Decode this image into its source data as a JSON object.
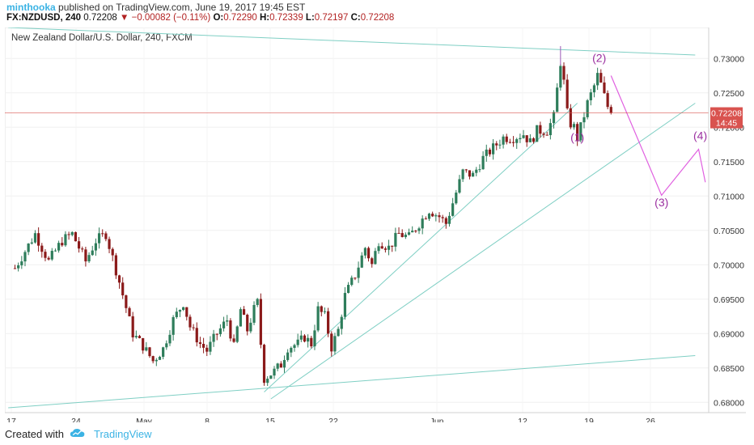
{
  "header": {
    "author": "minthooka",
    "published": "published on TradingView.com, June 19, 2017 19:45 EST",
    "symbol": "FX:NZDUSD, 240",
    "last": "0.72208",
    "change": "−0.00082 (−0.11%)",
    "o_label": "O:",
    "o_val": "0.72290",
    "h_label": "H:",
    "h_val": "0.72339",
    "l_label": "L:",
    "l_val": "0.72197",
    "c_label": "C:",
    "c_val": "0.72208"
  },
  "footer": {
    "created": "Created with",
    "brand": "TradingView"
  },
  "colors": {
    "up": "#2e7d5b",
    "down": "#8b1a1a",
    "trend": "#7fcfc4",
    "projection": "#e060e0",
    "wave_label": "#9b30a0",
    "last_price": "#d9534f",
    "axis_text": "#333333"
  },
  "chart_data": {
    "type": "candlestick",
    "title": "New Zealand Dollar/U.S. Dollar, 240, FXCM",
    "x_ticks": [
      "17",
      "24",
      "May",
      "8",
      "15",
      "22",
      "Jun",
      "12",
      "19",
      "26"
    ],
    "y_ticks": [
      "0.73000",
      "0.72500",
      "0.72000",
      "0.71500",
      "0.71000",
      "0.70500",
      "0.70000",
      "0.69500",
      "0.69000",
      "0.68500",
      "0.68000"
    ],
    "ylim": [
      0.6785,
      0.7345
    ],
    "last_price_label": "0.72208",
    "countdown_label": "14:45",
    "price_path": [
      [
        0,
        0.6995
      ],
      [
        6,
        0.7045
      ],
      [
        10,
        0.7005
      ],
      [
        14,
        0.7035
      ],
      [
        17,
        0.7045
      ],
      [
        21,
        0.7005
      ],
      [
        24,
        0.7035
      ],
      [
        27,
        0.7045
      ],
      [
        31,
        0.6975
      ],
      [
        35,
        0.69
      ],
      [
        38,
        0.6882
      ],
      [
        41,
        0.686
      ],
      [
        44,
        0.6878
      ],
      [
        47,
        0.692
      ],
      [
        50,
        0.6945
      ],
      [
        52,
        0.691
      ],
      [
        55,
        0.6885
      ],
      [
        57,
        0.6875
      ],
      [
        60,
        0.69
      ],
      [
        63,
        0.692
      ],
      [
        65,
        0.688
      ],
      [
        67,
        0.6935
      ],
      [
        69,
        0.6905
      ],
      [
        71,
        0.6935
      ],
      [
        72,
        0.6945
      ],
      [
        73,
        0.6885
      ],
      [
        74,
        0.6835
      ],
      [
        77,
        0.6845
      ],
      [
        79,
        0.6855
      ],
      [
        81,
        0.688
      ],
      [
        84,
        0.6885
      ],
      [
        86,
        0.6895
      ],
      [
        88,
        0.6885
      ],
      [
        90,
        0.6935
      ],
      [
        92,
        0.6925
      ],
      [
        94,
        0.688
      ],
      [
        96,
        0.6905
      ],
      [
        98,
        0.6955
      ],
      [
        101,
        0.6985
      ],
      [
        104,
        0.7025
      ],
      [
        106,
        0.7
      ],
      [
        108,
        0.7035
      ],
      [
        111,
        0.7025
      ],
      [
        114,
        0.7045
      ],
      [
        117,
        0.704
      ],
      [
        120,
        0.706
      ],
      [
        123,
        0.708
      ],
      [
        126,
        0.707
      ],
      [
        128,
        0.706
      ],
      [
        130,
        0.709
      ],
      [
        133,
        0.7135
      ],
      [
        136,
        0.713
      ],
      [
        139,
        0.7155
      ],
      [
        142,
        0.717
      ],
      [
        145,
        0.7185
      ],
      [
        148,
        0.7185
      ],
      [
        151,
        0.719
      ],
      [
        153,
        0.7178
      ],
      [
        155,
        0.7195
      ],
      [
        158,
        0.7195
      ],
      [
        160,
        0.7215
      ],
      [
        161,
        0.7255
      ],
      [
        162,
        0.7295
      ],
      [
        163,
        0.7265
      ],
      [
        164,
        0.722
      ],
      [
        165,
        0.7205
      ],
      [
        166,
        0.72
      ],
      [
        167,
        0.7185
      ],
      [
        168,
        0.72
      ],
      [
        170,
        0.7235
      ],
      [
        172,
        0.726
      ],
      [
        173,
        0.7275
      ],
      [
        174,
        0.7262
      ],
      [
        175,
        0.7245
      ],
      [
        176,
        0.723
      ],
      [
        177,
        0.7221
      ]
    ],
    "trendlines": [
      {
        "from": [
          -2,
          0.7345
        ],
        "to": [
          202,
          0.7305
        ]
      },
      {
        "from": [
          -2,
          0.6792
        ],
        "to": [
          202,
          0.6868
        ]
      },
      {
        "from": [
          74,
          0.6815
        ],
        "to": [
          167,
          0.7235
        ]
      },
      {
        "from": [
          76,
          0.6805
        ],
        "to": [
          202,
          0.7235
        ]
      }
    ],
    "projection": [
      [
        177,
        0.7275
      ],
      [
        192,
        0.7101
      ],
      [
        203,
        0.7168
      ],
      [
        205,
        0.712
      ]
    ],
    "wave_labels": [
      {
        "text": "(1)",
        "x": 167,
        "y": 0.718
      },
      {
        "text": "(2)",
        "x": 173.5,
        "y": 0.7295
      },
      {
        "text": "(3)",
        "x": 192,
        "y": 0.7085
      },
      {
        "text": "(4)",
        "x": 203.5,
        "y": 0.7182
      }
    ]
  }
}
